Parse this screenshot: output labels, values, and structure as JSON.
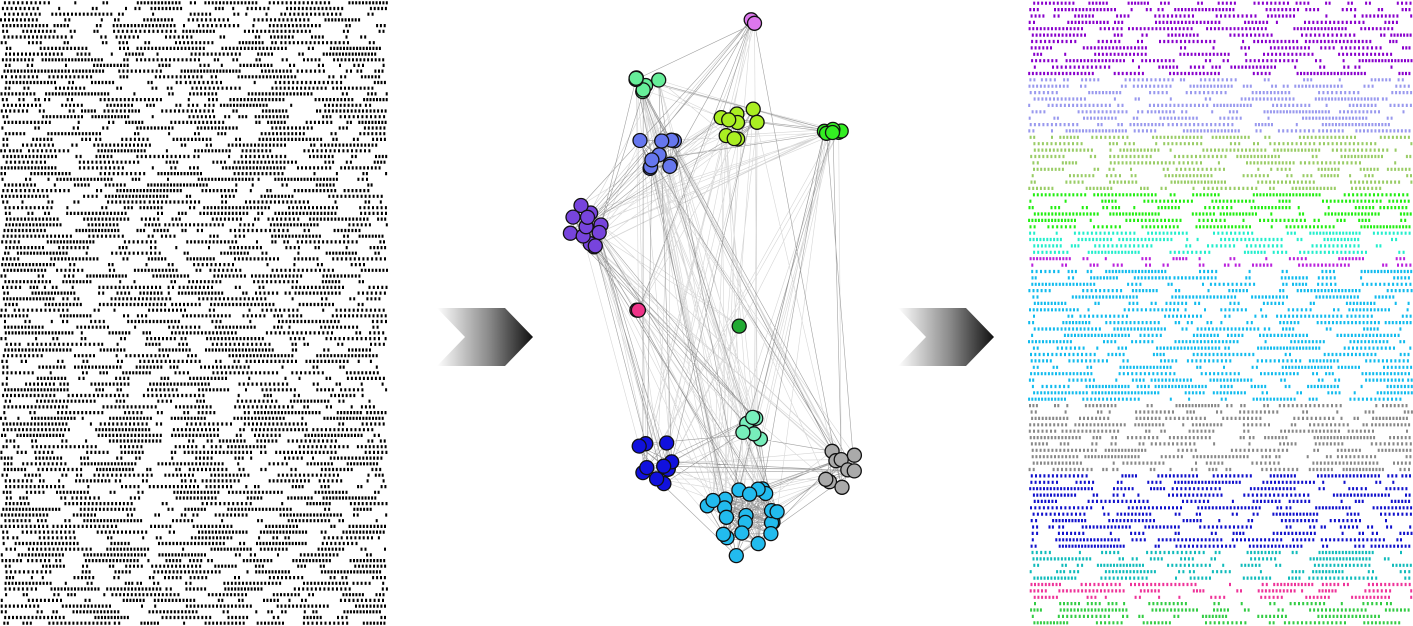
{
  "figure": {
    "stages": [
      "raw-raster",
      "cluster-network",
      "sorted-raster"
    ],
    "arrow_count": 2
  },
  "raw_raster": {
    "color": "#000000",
    "rows": 110
  },
  "network": {
    "edge_color": "#555555",
    "node_stroke": "#111111",
    "clusters": [
      {
        "name": "violet-pair",
        "color": "#dd77ee",
        "nodes": 2
      },
      {
        "name": "mint",
        "color": "#66ee99",
        "nodes": 7
      },
      {
        "name": "yellow-green",
        "color": "#aaee22",
        "nodes": 9
      },
      {
        "name": "green",
        "color": "#33ee22",
        "nodes": 6
      },
      {
        "name": "periwinkle",
        "color": "#6677ee",
        "nodes": 10
      },
      {
        "name": "purple",
        "color": "#7744dd",
        "nodes": 12
      },
      {
        "name": "pink",
        "color": "#ee3388",
        "nodes": 2
      },
      {
        "name": "dark-green",
        "color": "#22aa33",
        "nodes": 1
      },
      {
        "name": "light-teal",
        "color": "#77eebb",
        "nodes": 6
      },
      {
        "name": "blue",
        "color": "#1111dd",
        "nodes": 12
      },
      {
        "name": "gray",
        "color": "#aaaaaa",
        "nodes": 9
      },
      {
        "name": "sky-blue",
        "color": "#22bbee",
        "nodes": 22
      }
    ]
  },
  "sorted_raster": {
    "bands": [
      {
        "name": "purple",
        "color": "#8800cc",
        "rows": 12
      },
      {
        "name": "lavender",
        "color": "#9999ee",
        "rows": 9
      },
      {
        "name": "olive-green",
        "color": "#99cc66",
        "rows": 9
      },
      {
        "name": "green",
        "color": "#22ee11",
        "rows": 6
      },
      {
        "name": "cyan",
        "color": "#22eecc",
        "rows": 4
      },
      {
        "name": "magenta",
        "color": "#bb22dd",
        "rows": 2
      },
      {
        "name": "sky-blue",
        "color": "#11bbee",
        "rows": 21
      },
      {
        "name": "gray",
        "color": "#888888",
        "rows": 11
      },
      {
        "name": "blue",
        "color": "#1111cc",
        "rows": 12
      },
      {
        "name": "teal",
        "color": "#11bbbb",
        "rows": 5
      },
      {
        "name": "pink",
        "color": "#ee3399",
        "rows": 3
      },
      {
        "name": "bright-green",
        "color": "#33cc44",
        "rows": 4
      }
    ]
  }
}
